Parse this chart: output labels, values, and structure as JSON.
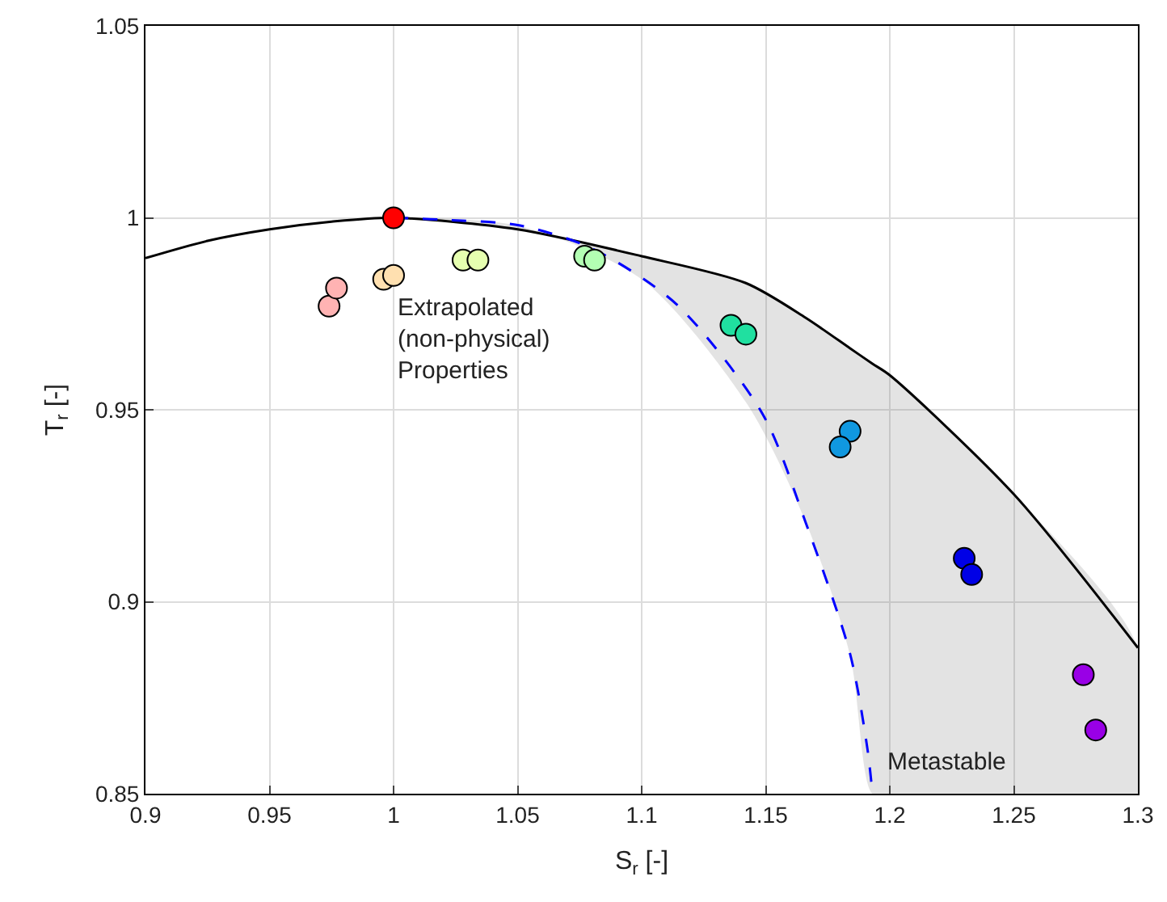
{
  "chart_data": {
    "type": "scatter",
    "xlabel": "S$_{r}$ [-]",
    "ylabel": "T$_{r}$ [-]",
    "xlim": [
      0.9,
      1.3
    ],
    "ylim": [
      0.85,
      1.05
    ],
    "xticks": [
      0.9,
      0.95,
      1,
      1.05,
      1.1,
      1.15,
      1.2,
      1.25,
      1.3
    ],
    "yticks": [
      0.85,
      0.9,
      0.95,
      1,
      1.05
    ],
    "grid": true,
    "marker": "circle",
    "series": [
      {
        "type": "line",
        "color": "#000000",
        "line_style": "solid",
        "marker": "none",
        "x": [
          0.9,
          0.925,
          0.95,
          0.975,
          1.0,
          1.05,
          1.1,
          1.142,
          1.166,
          1.184,
          1.193,
          1.2,
          1.25,
          1.3
        ],
        "values": [
          0.9895,
          0.994,
          0.997,
          0.999,
          1.0,
          0.997,
          0.99,
          0.983,
          0.974,
          0.966,
          0.962,
          0.959,
          0.928,
          0.888
        ],
        "lower": [
          null,
          null,
          null,
          null,
          1.0,
          0.998,
          0.984,
          0.952,
          0.921,
          0.886,
          0.85,
          0.85,
          0.85,
          0.85
        ],
        "upper": [
          null,
          null,
          null,
          null,
          1.0,
          0.997,
          0.99,
          0.983,
          0.974,
          0.966,
          0.962,
          0.959,
          0.928,
          0.888
        ]
      },
      {
        "type": "line",
        "color": "#0000ff",
        "line_style": "dashed",
        "marker": "none",
        "x": [
          1.0,
          1.02,
          1.051,
          1.08,
          1.114,
          1.149,
          1.166,
          1.184,
          1.191,
          1.193
        ],
        "values": [
          1.0,
          0.9995,
          0.998,
          0.992,
          0.9775,
          0.9486,
          0.9208,
          0.8864,
          0.8616,
          0.85
        ]
      },
      {
        "x": [
          0.974,
          0.977,
          0.996,
          1.0,
          1.028,
          1.034,
          1.077,
          1.081
        ],
        "values": [
          0.977,
          0.9817,
          0.984,
          0.985,
          0.989,
          0.989,
          0.99,
          0.989
        ],
        "colors": [
          "#ffb3b3",
          "#ffb3b3",
          "#ffe0b0",
          "#ffe0b0",
          "#e6ffb0",
          "#e6ffb0",
          "#b3ffb3",
          "#b3ffb3"
        ]
      },
      {
        "x": [
          1.0,
          1.136,
          1.142,
          1.184,
          1.18,
          1.23,
          1.233,
          1.278,
          1.283
        ],
        "values": [
          1.0,
          0.972,
          0.9697,
          0.9444,
          0.9403,
          0.9113,
          0.9071,
          0.881,
          0.8666
        ],
        "colors": [
          "#ff0000",
          "#20e0a0",
          "#20e0a0",
          "#1098e0",
          "#1098e0",
          "#0000e6",
          "#0000e6",
          "#9900e6",
          "#9900e6"
        ]
      }
    ],
    "annotations": [
      "Extrapolated\n(non-physical)\nProperties",
      "Metastable"
    ]
  }
}
